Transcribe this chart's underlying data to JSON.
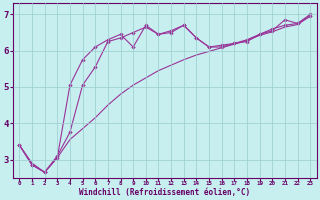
{
  "xlabel": "Windchill (Refroidissement éolien,°C)",
  "bg_color": "#c8efef",
  "line_color": "#993399",
  "grid_color": "#99cccc",
  "axis_color": "#660066",
  "text_color": "#660066",
  "xlim": [
    -0.5,
    23.5
  ],
  "ylim": [
    2.5,
    7.3
  ],
  "xticks": [
    0,
    1,
    2,
    3,
    4,
    5,
    6,
    7,
    8,
    9,
    10,
    11,
    12,
    13,
    14,
    15,
    16,
    17,
    18,
    19,
    20,
    21,
    22,
    23
  ],
  "yticks": [
    3,
    4,
    5,
    6,
    7
  ],
  "line1_x": [
    0,
    1,
    2,
    3,
    4,
    5,
    6,
    7,
    8,
    9,
    10,
    11,
    12,
    13,
    14,
    15,
    16,
    17,
    18,
    19,
    20,
    21,
    22,
    23
  ],
  "line1_y": [
    3.4,
    2.85,
    2.65,
    3.05,
    5.05,
    5.75,
    6.1,
    6.3,
    6.45,
    6.1,
    6.7,
    6.45,
    6.5,
    6.7,
    6.35,
    6.1,
    6.1,
    6.2,
    6.25,
    6.45,
    6.55,
    6.85,
    6.75,
    7.0
  ],
  "line2_x": [
    0,
    1,
    2,
    3,
    4,
    5,
    6,
    7,
    8,
    9,
    10,
    11,
    12,
    13,
    14,
    15,
    16,
    17,
    18,
    19,
    20,
    21,
    22,
    23
  ],
  "line2_y": [
    3.4,
    2.85,
    2.65,
    3.1,
    3.75,
    5.05,
    5.55,
    6.25,
    6.35,
    6.5,
    6.65,
    6.45,
    6.55,
    6.7,
    6.35,
    6.1,
    6.15,
    6.2,
    6.3,
    6.45,
    6.6,
    6.7,
    6.75,
    6.95
  ],
  "line3_x": [
    0,
    1,
    2,
    3,
    4,
    5,
    6,
    7,
    8,
    9,
    10,
    11,
    12,
    13,
    14,
    15,
    16,
    17,
    18,
    19,
    20,
    21,
    22,
    23
  ],
  "line3_y": [
    3.4,
    2.9,
    2.65,
    3.05,
    3.55,
    3.85,
    4.15,
    4.5,
    4.8,
    5.05,
    5.25,
    5.45,
    5.6,
    5.75,
    5.88,
    5.98,
    6.08,
    6.18,
    6.28,
    6.42,
    6.52,
    6.65,
    6.72,
    6.95
  ]
}
